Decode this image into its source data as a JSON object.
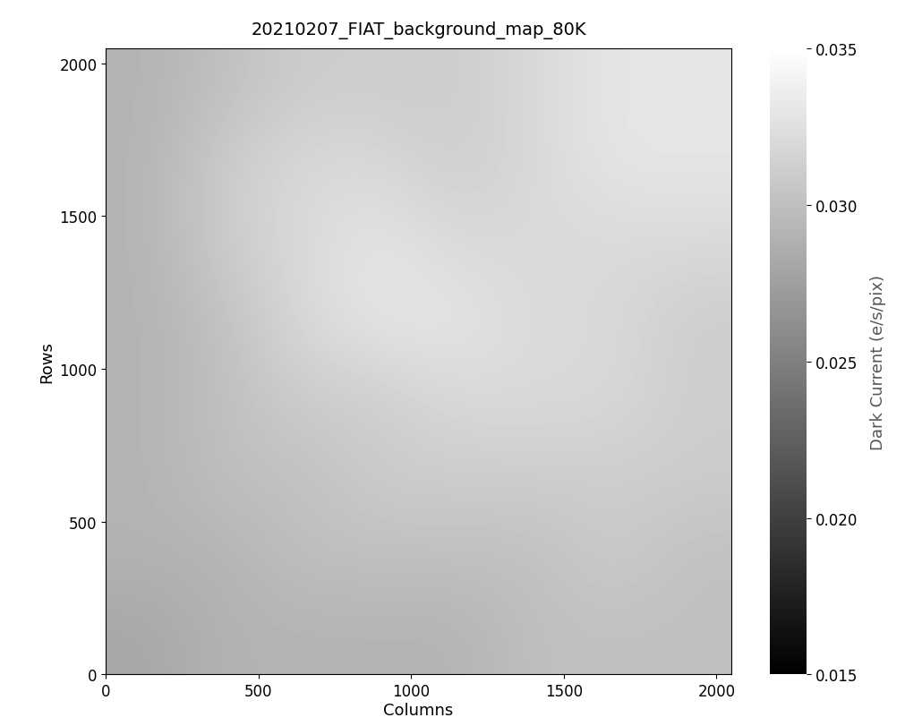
{
  "chart_data": {
    "type": "heatmap",
    "title": "20210207_FIAT_background_map_80K",
    "x_label": "Columns",
    "y_label": "Rows",
    "xlim": [
      0,
      2048
    ],
    "ylim": [
      0,
      2048
    ],
    "xticks": [
      0,
      500,
      1000,
      1500,
      2000
    ],
    "yticks": [
      0,
      500,
      1000,
      1500,
      2000
    ],
    "color": "gray",
    "cells": [
      [
        0.028,
        0.029,
        0.029,
        0.029,
        0.029,
        0.03,
        0.03,
        0.03
      ],
      [
        0.029,
        0.029,
        0.03,
        0.03,
        0.03,
        0.03,
        0.031,
        0.03
      ],
      [
        0.029,
        0.03,
        0.03,
        0.031,
        0.031,
        0.031,
        0.031,
        0.031
      ],
      [
        0.029,
        0.03,
        0.031,
        0.031,
        0.032,
        0.032,
        0.032,
        0.031
      ],
      [
        0.029,
        0.03,
        0.032,
        0.033,
        0.033,
        0.032,
        0.032,
        0.031
      ],
      [
        0.029,
        0.031,
        0.032,
        0.033,
        0.032,
        0.032,
        0.032,
        0.032
      ],
      [
        0.029,
        0.031,
        0.032,
        0.032,
        0.031,
        0.032,
        0.033,
        0.033
      ],
      [
        0.029,
        0.03,
        0.031,
        0.031,
        0.031,
        0.032,
        0.033,
        0.033
      ]
    ],
    "colorbar": {
      "label": "Dark Current (e/s/pix)",
      "range": [
        0.015,
        0.035
      ],
      "ticks": [
        {
          "value": 0.015,
          "label": "0.015"
        },
        {
          "value": 0.02,
          "label": "0.020"
        },
        {
          "value": 0.025,
          "label": "0.025"
        },
        {
          "value": 0.03,
          "label": "0.030"
        },
        {
          "value": 0.035,
          "label": "0.035"
        }
      ]
    }
  }
}
